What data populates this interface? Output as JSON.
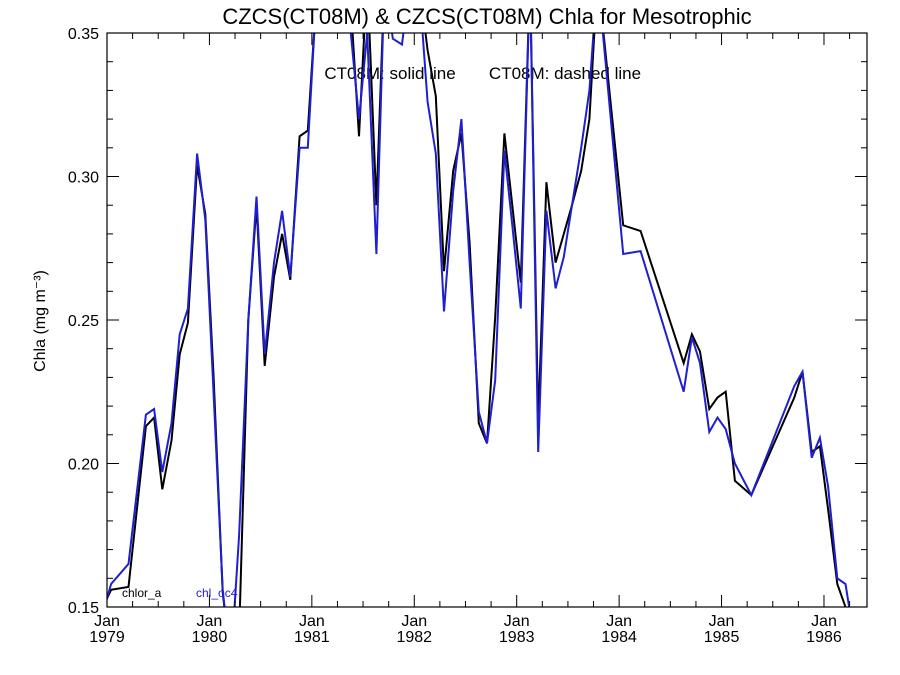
{
  "chart_data": {
    "type": "line",
    "title": "CZCS(CT08M) & CZCS(CT08M)  Chla for Mesotrophic",
    "subtitle_left": "CT08M: solid line",
    "subtitle_right": "CT08M: dashed line",
    "ylabel": "Chla (mg m⁻³)",
    "ylim": [
      0.15,
      0.35
    ],
    "xlim": [
      1979.0,
      1986.42
    ],
    "yticks": [
      {
        "value": 0.15,
        "label": "0.15"
      },
      {
        "value": 0.2,
        "label": "0.20"
      },
      {
        "value": 0.25,
        "label": "0.25"
      },
      {
        "value": 0.3,
        "label": "0.30"
      },
      {
        "value": 0.35,
        "label": "0.35"
      }
    ],
    "xticks": [
      {
        "value": 1979,
        "month": "Jan",
        "year": "1979"
      },
      {
        "value": 1980,
        "month": "Jan",
        "year": "1980"
      },
      {
        "value": 1981,
        "month": "Jan",
        "year": "1981"
      },
      {
        "value": 1982,
        "month": "Jan",
        "year": "1982"
      },
      {
        "value": 1983,
        "month": "Jan",
        "year": "1983"
      },
      {
        "value": 1984,
        "month": "Jan",
        "year": "1984"
      },
      {
        "value": 1985,
        "month": "Jan",
        "year": "1985"
      },
      {
        "value": 1986,
        "month": "Jan",
        "year": "1986"
      }
    ],
    "grid": false,
    "legend_position": "bottom-left",
    "series": [
      {
        "name": "chlor_a",
        "color": "#000000",
        "x": [
          1978.96,
          1979.04,
          1979.21,
          1979.38,
          1979.46,
          1979.54,
          1979.63,
          1979.71,
          1979.79,
          1979.88,
          1979.96,
          1980.04,
          1980.13,
          1980.21,
          1980.29,
          1980.38,
          1980.46,
          1980.54,
          1980.63,
          1980.71,
          1980.79,
          1980.88,
          1980.96,
          1981.04,
          1981.13,
          1981.21,
          1981.29,
          1981.38,
          1981.46,
          1981.54,
          1981.63,
          1981.71,
          1981.79,
          1981.88,
          1981.96,
          1982.04,
          1982.13,
          1982.21,
          1982.29,
          1982.38,
          1982.46,
          1982.54,
          1982.63,
          1982.71,
          1982.79,
          1982.88,
          1982.96,
          1983.04,
          1983.13,
          1983.21,
          1983.29,
          1983.38,
          1983.46,
          1983.54,
          1983.63,
          1983.71,
          1983.79,
          1984.04,
          1984.21,
          1984.63,
          1984.71,
          1984.79,
          1984.88,
          1984.96,
          1985.04,
          1985.13,
          1985.29,
          1985.71,
          1985.79,
          1985.88,
          1985.96,
          1986.04,
          1986.13,
          1986.21,
          1986.29
        ],
        "values": [
          0.15,
          0.156,
          0.157,
          0.213,
          0.216,
          0.191,
          0.208,
          0.238,
          0.249,
          0.304,
          0.287,
          0.231,
          0.155,
          0.13,
          0.14,
          0.25,
          0.29,
          0.234,
          0.265,
          0.28,
          0.264,
          0.314,
          0.316,
          0.36,
          0.37,
          0.37,
          0.37,
          0.36,
          0.314,
          0.37,
          0.29,
          0.37,
          0.37,
          0.37,
          0.37,
          0.37,
          0.344,
          0.328,
          0.267,
          0.302,
          0.315,
          0.277,
          0.214,
          0.207,
          0.251,
          0.315,
          0.289,
          0.263,
          0.37,
          0.214,
          0.298,
          0.27,
          0.28,
          0.29,
          0.302,
          0.32,
          0.37,
          0.283,
          0.281,
          0.235,
          0.245,
          0.239,
          0.219,
          0.223,
          0.225,
          0.194,
          0.189,
          0.223,
          0.232,
          0.204,
          0.206,
          0.184,
          0.158,
          0.15,
          0.14
        ]
      },
      {
        "name": "chl_oc4",
        "color": "#1f1fd0",
        "x": [
          1978.96,
          1979.04,
          1979.21,
          1979.38,
          1979.46,
          1979.54,
          1979.63,
          1979.71,
          1979.79,
          1979.88,
          1979.96,
          1980.04,
          1980.13,
          1980.21,
          1980.29,
          1980.38,
          1980.46,
          1980.54,
          1980.63,
          1980.71,
          1980.79,
          1980.88,
          1980.96,
          1981.04,
          1981.13,
          1981.21,
          1981.29,
          1981.38,
          1981.46,
          1981.54,
          1981.63,
          1981.71,
          1981.79,
          1981.88,
          1981.96,
          1982.04,
          1982.13,
          1982.21,
          1982.29,
          1982.38,
          1982.46,
          1982.54,
          1982.63,
          1982.71,
          1982.79,
          1982.88,
          1982.96,
          1983.04,
          1983.13,
          1983.21,
          1983.29,
          1983.38,
          1983.46,
          1983.54,
          1983.63,
          1983.71,
          1983.79,
          1984.04,
          1984.21,
          1984.63,
          1984.71,
          1984.79,
          1984.88,
          1984.96,
          1985.04,
          1985.13,
          1985.29,
          1985.71,
          1985.79,
          1985.88,
          1985.96,
          1986.04,
          1986.13,
          1986.21,
          1986.29
        ],
        "values": [
          0.148,
          0.158,
          0.165,
          0.217,
          0.219,
          0.197,
          0.214,
          0.245,
          0.254,
          0.308,
          0.285,
          0.225,
          0.156,
          0.13,
          0.175,
          0.25,
          0.293,
          0.238,
          0.27,
          0.288,
          0.265,
          0.31,
          0.31,
          0.36,
          0.37,
          0.35,
          0.37,
          0.35,
          0.32,
          0.35,
          0.273,
          0.37,
          0.348,
          0.346,
          0.37,
          0.37,
          0.326,
          0.308,
          0.253,
          0.295,
          0.32,
          0.27,
          0.218,
          0.207,
          0.229,
          0.309,
          0.282,
          0.254,
          0.37,
          0.204,
          0.288,
          0.261,
          0.272,
          0.29,
          0.31,
          0.33,
          0.37,
          0.273,
          0.274,
          0.225,
          0.244,
          0.235,
          0.211,
          0.216,
          0.212,
          0.2,
          0.189,
          0.227,
          0.232,
          0.202,
          0.209,
          0.192,
          0.16,
          0.158,
          0.14
        ]
      }
    ]
  }
}
